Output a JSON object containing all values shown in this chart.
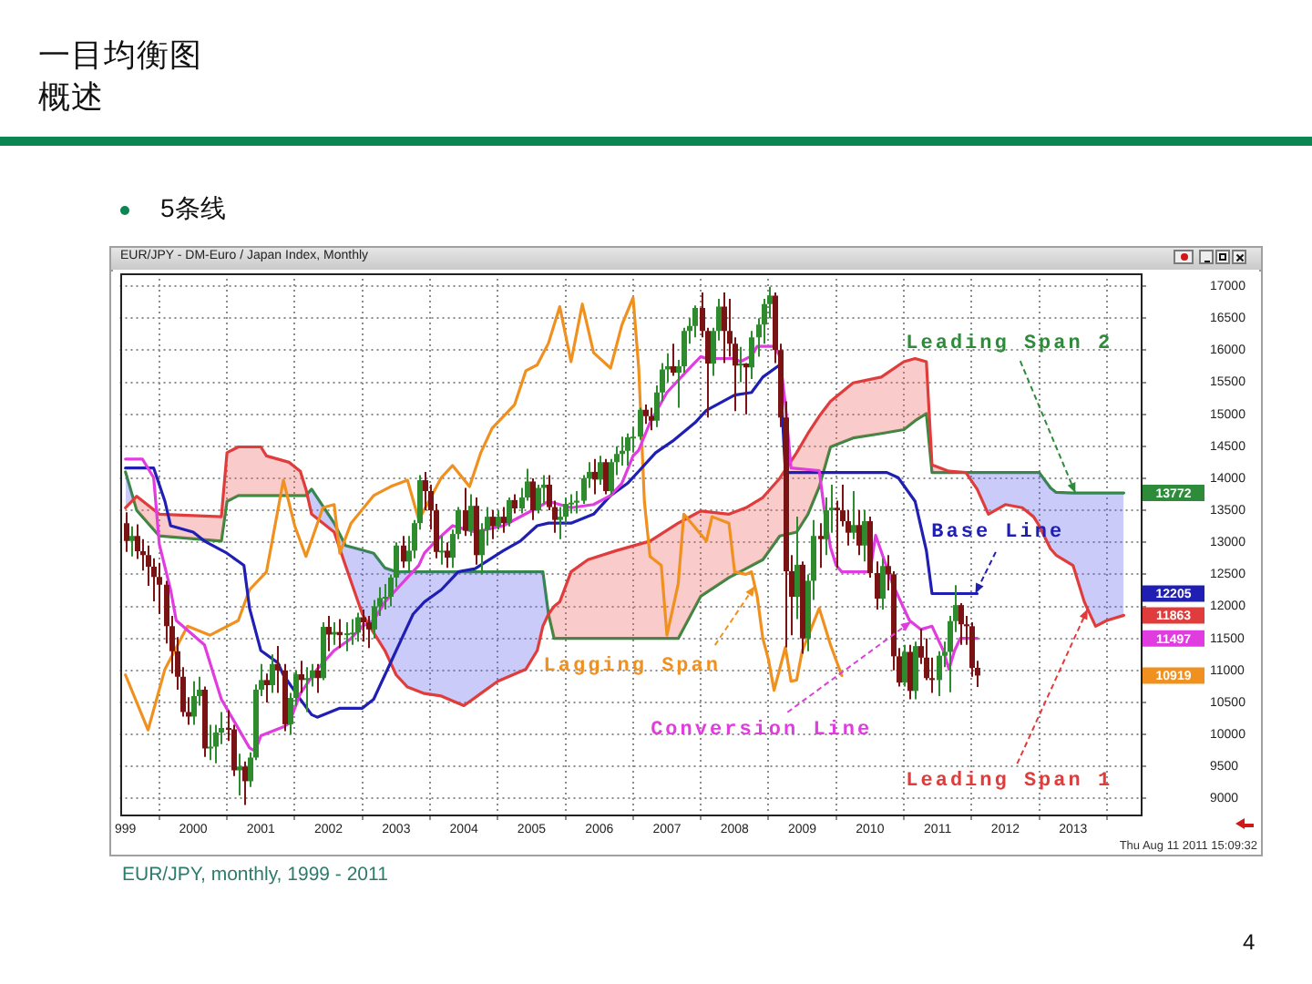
{
  "chart_data": {
    "type": "candlestick",
    "title": "一目均衡图",
    "subtitle": "概述",
    "annotations": [
      "5条线",
      "EUR/JPY - DM-Euro / Japan Index, Monthly",
      "Thu Aug 11 2011 15:09:32",
      "EUR/JPY, monthly, 1999 - 2011",
      "4",
      "13772",
      "12205",
      "11863",
      "11497",
      "10919"
    ],
    "xlim": [
      "1998-12",
      "2014-01"
    ],
    "xticks": [
      {
        "value": "1999",
        "label": "999"
      },
      "2000",
      "2001",
      "2002",
      "2003",
      "2004",
      "2005",
      "2006",
      "2007",
      "2008",
      "2009",
      "2010",
      "2011",
      "2012",
      "2013"
    ],
    "ylim": [
      8750,
      17200
    ],
    "yticks": [
      9000,
      9500,
      10000,
      10500,
      11000,
      11500,
      12000,
      12500,
      13000,
      13500,
      14000,
      14500,
      15000,
      15500,
      16000,
      16500,
      17000
    ],
    "grid": true,
    "x": [
      "1999-01",
      "1999-02",
      "1999-03",
      "1999-04",
      "1999-05",
      "1999-06",
      "1999-07",
      "1999-08",
      "1999-09",
      "1999-10",
      "1999-11",
      "1999-12",
      "2000-01",
      "2000-02",
      "2000-03",
      "2000-04",
      "2000-05",
      "2000-06",
      "2000-07",
      "2000-08",
      "2000-09",
      "2000-10",
      "2000-11",
      "2000-12",
      "2001-01",
      "2001-02",
      "2001-03",
      "2001-04",
      "2001-05",
      "2001-06",
      "2001-07",
      "2001-08",
      "2001-09",
      "2001-10",
      "2001-11",
      "2001-12",
      "2002-01",
      "2002-02",
      "2002-03",
      "2002-04",
      "2002-05",
      "2002-06",
      "2002-07",
      "2002-08",
      "2002-09",
      "2002-10",
      "2002-11",
      "2002-12",
      "2003-01",
      "2003-02",
      "2003-03",
      "2003-04",
      "2003-05",
      "2003-06",
      "2003-07",
      "2003-08",
      "2003-09",
      "2003-10",
      "2003-11",
      "2003-12",
      "2004-01",
      "2004-02",
      "2004-03",
      "2004-04",
      "2004-05",
      "2004-06",
      "2004-07",
      "2004-08",
      "2004-09",
      "2004-10",
      "2004-11",
      "2004-12",
      "2005-01",
      "2005-02",
      "2005-03",
      "2005-04",
      "2005-05",
      "2005-06",
      "2005-07",
      "2005-08",
      "2005-09",
      "2005-10",
      "2005-11",
      "2005-12",
      "2006-01",
      "2006-02",
      "2006-03",
      "2006-04",
      "2006-05",
      "2006-06",
      "2006-07",
      "2006-08",
      "2006-09",
      "2006-10",
      "2006-11",
      "2006-12",
      "2007-01",
      "2007-02",
      "2007-03",
      "2007-04",
      "2007-05",
      "2007-06",
      "2007-07",
      "2007-08",
      "2007-09",
      "2007-10",
      "2007-11",
      "2007-12",
      "2008-01",
      "2008-02",
      "2008-03",
      "2008-04",
      "2008-05",
      "2008-06",
      "2008-07",
      "2008-08",
      "2008-09",
      "2008-10",
      "2008-11",
      "2008-12",
      "2009-01",
      "2009-02",
      "2009-03",
      "2009-04",
      "2009-05",
      "2009-06",
      "2009-07",
      "2009-08",
      "2009-09",
      "2009-10",
      "2009-11",
      "2009-12",
      "2010-01",
      "2010-02",
      "2010-03",
      "2010-04",
      "2010-05",
      "2010-06",
      "2010-07",
      "2010-08",
      "2010-09",
      "2010-10",
      "2010-11",
      "2010-12",
      "2011-01",
      "2011-02",
      "2011-03",
      "2011-04",
      "2011-05",
      "2011-06",
      "2011-07",
      "2011-08"
    ],
    "ohlc": [
      [
        13300,
        13470,
        12850,
        13020
      ],
      [
        13020,
        13250,
        12780,
        13100
      ],
      [
        13100,
        13280,
        12740,
        12860
      ],
      [
        12860,
        13050,
        12560,
        12800
      ],
      [
        12800,
        12950,
        12320,
        12620
      ],
      [
        12620,
        12750,
        12080,
        12460
      ],
      [
        12460,
        12680,
        11880,
        12340
      ],
      [
        12340,
        12400,
        11420,
        11690
      ],
      [
        11690,
        11850,
        10950,
        11300
      ],
      [
        11300,
        11520,
        10700,
        10900
      ],
      [
        10900,
        11050,
        10280,
        10350
      ],
      [
        10350,
        10580,
        10150,
        10280
      ],
      [
        10280,
        10830,
        10150,
        10600
      ],
      [
        10600,
        10900,
        10450,
        10700
      ],
      [
        10700,
        10750,
        9650,
        9780
      ],
      [
        9780,
        10150,
        9600,
        9810
      ],
      [
        9810,
        10150,
        9550,
        10030
      ],
      [
        10030,
        10350,
        9850,
        10100
      ],
      [
        10100,
        10380,
        9900,
        10080
      ],
      [
        10080,
        10150,
        9350,
        9440
      ],
      [
        9440,
        9700,
        9050,
        9500
      ],
      [
        9500,
        9580,
        8900,
        9270
      ],
      [
        9270,
        9720,
        9180,
        9640
      ],
      [
        9640,
        10780,
        9600,
        10700
      ],
      [
        10700,
        11100,
        10600,
        10850
      ],
      [
        10850,
        10950,
        10500,
        10770
      ],
      [
        10770,
        11250,
        10650,
        11100
      ],
      [
        11100,
        11380,
        10650,
        11000
      ],
      [
        11000,
        11100,
        10050,
        10160
      ],
      [
        10160,
        10650,
        10000,
        10570
      ],
      [
        10570,
        11000,
        10450,
        10940
      ],
      [
        10940,
        11150,
        10650,
        10850
      ],
      [
        10850,
        11050,
        10350,
        10880
      ],
      [
        10880,
        11100,
        10750,
        11000
      ],
      [
        11000,
        11100,
        10650,
        10880
      ],
      [
        10880,
        11750,
        10850,
        11680
      ],
      [
        11680,
        11850,
        11300,
        11560
      ],
      [
        11560,
        11750,
        11400,
        11600
      ],
      [
        11600,
        11800,
        11350,
        11550
      ],
      [
        11550,
        11750,
        11300,
        11580
      ],
      [
        11580,
        11800,
        11400,
        11590
      ],
      [
        11590,
        11900,
        11450,
        11830
      ],
      [
        11830,
        11950,
        11450,
        11750
      ],
      [
        11750,
        11850,
        11350,
        11640
      ],
      [
        11640,
        12100,
        11500,
        12000
      ],
      [
        12000,
        12300,
        11850,
        12130
      ],
      [
        12130,
        12350,
        11950,
        12150
      ],
      [
        12150,
        12500,
        12000,
        12450
      ],
      [
        12450,
        13000,
        12300,
        12950
      ],
      [
        12950,
        13100,
        12600,
        12700
      ],
      [
        12700,
        13100,
        12550,
        12870
      ],
      [
        12870,
        13350,
        12750,
        13300
      ],
      [
        13300,
        14050,
        13200,
        13970
      ],
      [
        13970,
        14100,
        13500,
        13800
      ],
      [
        13800,
        13900,
        13200,
        13500
      ],
      [
        13500,
        13600,
        12750,
        12850
      ],
      [
        12850,
        13100,
        12650,
        12870
      ],
      [
        12870,
        13000,
        12600,
        12760
      ],
      [
        12760,
        13200,
        12600,
        13130
      ],
      [
        13130,
        13550,
        13050,
        13500
      ],
      [
        13500,
        13850,
        13100,
        13180
      ],
      [
        13180,
        13750,
        13100,
        13570
      ],
      [
        13570,
        13700,
        12650,
        12800
      ],
      [
        12800,
        13300,
        12500,
        13200
      ],
      [
        13200,
        13550,
        12950,
        13400
      ],
      [
        13400,
        13500,
        13050,
        13250
      ],
      [
        13250,
        13500,
        13200,
        13400
      ],
      [
        13400,
        13550,
        13150,
        13300
      ],
      [
        13300,
        13700,
        13250,
        13660
      ],
      [
        13660,
        13750,
        13450,
        13530
      ],
      [
        13530,
        13850,
        13450,
        13700
      ],
      [
        13700,
        14150,
        13650,
        13950
      ],
      [
        13950,
        14000,
        13350,
        13500
      ],
      [
        13500,
        13900,
        13450,
        13850
      ],
      [
        13850,
        14050,
        13600,
        13900
      ],
      [
        13900,
        14050,
        13500,
        13550
      ],
      [
        13550,
        13650,
        13150,
        13350
      ],
      [
        13350,
        13550,
        13050,
        13400
      ],
      [
        13400,
        13700,
        13300,
        13600
      ],
      [
        13600,
        13750,
        13450,
        13620
      ],
      [
        13620,
        13800,
        13450,
        13650
      ],
      [
        13650,
        14050,
        13600,
        14000
      ],
      [
        14000,
        14250,
        13850,
        14100
      ],
      [
        14100,
        14300,
        13750,
        13980
      ],
      [
        13980,
        14350,
        13900,
        14250
      ],
      [
        14250,
        14300,
        13750,
        13800
      ],
      [
        13800,
        14300,
        13750,
        14250
      ],
      [
        14250,
        14500,
        14050,
        14380
      ],
      [
        14380,
        14650,
        14200,
        14430
      ],
      [
        14430,
        14700,
        14200,
        14640
      ],
      [
        14640,
        14800,
        14400,
        14650
      ],
      [
        14650,
        15100,
        14600,
        15070
      ],
      [
        15070,
        15150,
        14850,
        14970
      ],
      [
        14970,
        15100,
        14750,
        14900
      ],
      [
        14900,
        15450,
        14800,
        15340
      ],
      [
        15340,
        15800,
        15200,
        15700
      ],
      [
        15700,
        15950,
        15500,
        15750
      ],
      [
        15750,
        16100,
        15600,
        15650
      ],
      [
        15650,
        15850,
        15100,
        15750
      ],
      [
        15750,
        16350,
        15650,
        16300
      ],
      [
        16300,
        16500,
        16100,
        16380
      ],
      [
        16380,
        16700,
        16200,
        16660
      ],
      [
        16660,
        16900,
        16200,
        16300
      ],
      [
        16300,
        16350,
        14950,
        15790
      ],
      [
        15790,
        16350,
        15600,
        16300
      ],
      [
        16300,
        16800,
        16150,
        16680
      ],
      [
        16680,
        16900,
        15800,
        16300
      ],
      [
        16300,
        16800,
        15900,
        16100
      ],
      [
        16100,
        16200,
        15050,
        15760
      ],
      [
        15760,
        16050,
        15500,
        15790
      ],
      [
        15790,
        15800,
        15000,
        15730
      ],
      [
        15730,
        16300,
        15550,
        16200
      ],
      [
        16200,
        16500,
        15900,
        16400
      ],
      [
        16400,
        16800,
        16100,
        16720
      ],
      [
        16720,
        16990,
        16500,
        16850
      ],
      [
        16850,
        16900,
        15800,
        16000
      ],
      [
        16000,
        16100,
        14800,
        14950
      ],
      [
        14950,
        15200,
        11360,
        12550
      ],
      [
        12550,
        12800,
        11550,
        12150
      ],
      [
        12150,
        13400,
        11800,
        12650
      ],
      [
        12650,
        12700,
        11260,
        11500
      ],
      [
        11500,
        12500,
        11300,
        12400
      ],
      [
        12400,
        13350,
        12100,
        13100
      ],
      [
        13100,
        13300,
        12600,
        13050
      ],
      [
        13050,
        13700,
        12800,
        13500
      ],
      [
        13500,
        13900,
        13150,
        13540
      ],
      [
        13540,
        13650,
        12600,
        13500
      ],
      [
        13500,
        13900,
        13250,
        13330
      ],
      [
        13330,
        13500,
        12950,
        13150
      ],
      [
        13150,
        13800,
        13050,
        13270
      ],
      [
        13270,
        13500,
        12800,
        12950
      ],
      [
        12950,
        13500,
        12700,
        13330
      ],
      [
        13330,
        13400,
        12450,
        12520
      ],
      [
        12520,
        12700,
        11950,
        12120
      ],
      [
        12120,
        12750,
        11950,
        12630
      ],
      [
        12630,
        12800,
        12250,
        12500
      ],
      [
        12500,
        12550,
        11000,
        11220
      ],
      [
        11220,
        11350,
        10750,
        10810
      ],
      [
        10810,
        11400,
        10750,
        11290
      ],
      [
        11290,
        11400,
        10550,
        10680
      ],
      [
        10680,
        11450,
        10550,
        11380
      ],
      [
        11380,
        11650,
        11100,
        11200
      ],
      [
        11200,
        11500,
        10850,
        10880
      ],
      [
        10880,
        11200,
        10650,
        10850
      ],
      [
        10850,
        11300,
        10600,
        11230
      ],
      [
        11230,
        11450,
        11050,
        11290
      ],
      [
        11290,
        11850,
        10660,
        11770
      ],
      [
        11770,
        12330,
        11600,
        12020
      ],
      [
        12020,
        12050,
        11400,
        11720
      ],
      [
        11720,
        11850,
        11400,
        11690
      ],
      [
        11690,
        11750,
        10900,
        11040
      ],
      [
        11040,
        11150,
        10740,
        10920
      ]
    ],
    "colors": [
      "#7a1414",
      "#2e8b2e",
      "#7a1414",
      "#7a1414",
      "#7a1414",
      "#7a1414",
      "#7a1414",
      "#7a1414",
      "#7a1414",
      "#7a1414",
      "#7a1414",
      "#7a1414",
      "#2e8b2e",
      "#2e8b2e",
      "#7a1414",
      "#2e8b2e",
      "#2e8b2e",
      "#2e8b2e",
      "#7a1414",
      "#7a1414",
      "#2e8b2e",
      "#7a1414",
      "#2e8b2e",
      "#2e8b2e",
      "#2e8b2e",
      "#7a1414",
      "#2e8b2e",
      "#7a1414",
      "#7a1414",
      "#2e8b2e",
      "#2e8b2e",
      "#7a1414",
      "#2e8b2e",
      "#2e8b2e",
      "#7a1414",
      "#2e8b2e",
      "#7a1414",
      "#2e8b2e",
      "#7a1414",
      "#2e8b2e",
      "#2e8b2e",
      "#2e8b2e",
      "#7a1414",
      "#7a1414",
      "#2e8b2e",
      "#2e8b2e",
      "#2e8b2e",
      "#2e8b2e",
      "#2e8b2e",
      "#7a1414",
      "#2e8b2e",
      "#2e8b2e",
      "#2e8b2e",
      "#7a1414",
      "#7a1414",
      "#7a1414",
      "#2e8b2e",
      "#7a1414",
      "#2e8b2e",
      "#2e8b2e",
      "#7a1414",
      "#2e8b2e",
      "#7a1414",
      "#2e8b2e",
      "#2e8b2e",
      "#7a1414",
      "#2e8b2e",
      "#7a1414",
      "#2e8b2e",
      "#7a1414",
      "#2e8b2e",
      "#2e8b2e",
      "#7a1414",
      "#2e8b2e",
      "#2e8b2e",
      "#7a1414",
      "#7a1414",
      "#2e8b2e",
      "#2e8b2e",
      "#2e8b2e",
      "#2e8b2e",
      "#2e8b2e",
      "#2e8b2e",
      "#7a1414",
      "#2e8b2e",
      "#7a1414",
      "#2e8b2e",
      "#2e8b2e",
      "#2e8b2e",
      "#2e8b2e",
      "#2e8b2e",
      "#2e8b2e",
      "#7a1414",
      "#7a1414",
      "#2e8b2e",
      "#2e8b2e",
      "#2e8b2e",
      "#7a1414",
      "#2e8b2e",
      "#2e8b2e",
      "#2e8b2e",
      "#2e8b2e",
      "#7a1414",
      "#7a1414",
      "#2e8b2e",
      "#2e8b2e",
      "#7a1414",
      "#7a1414",
      "#7a1414",
      "#2e8b2e",
      "#7a1414",
      "#2e8b2e",
      "#2e8b2e",
      "#2e8b2e",
      "#2e8b2e",
      "#7a1414",
      "#7a1414",
      "#7a1414",
      "#7a1414",
      "#2e8b2e",
      "#7a1414",
      "#2e8b2e",
      "#2e8b2e",
      "#7a1414",
      "#2e8b2e",
      "#2e8b2e",
      "#7a1414",
      "#7a1414",
      "#7a1414",
      "#2e8b2e",
      "#7a1414",
      "#2e8b2e",
      "#7a1414",
      "#7a1414",
      "#2e8b2e",
      "#7a1414",
      "#7a1414",
      "#7a1414",
      "#2e8b2e",
      "#7a1414",
      "#2e8b2e",
      "#7a1414",
      "#7a1414",
      "#7a1414",
      "#2e8b2e",
      "#2e8b2e",
      "#2e8b2e",
      "#2e8b2e",
      "#7a1414",
      "#7a1414",
      "#7a1414",
      "#7a1414"
    ],
    "series": [
      {
        "name": "Conversion Line",
        "type": "line",
        "color": "#e03ce0",
        "x": [
          "1999-01",
          "1999-04",
          "1999-06",
          "1999-07",
          "1999-09",
          "1999-10",
          "2000-03",
          "2000-06",
          "2000-11",
          "2000-12",
          "2001-01",
          "2001-05",
          "2001-06",
          "2001-08",
          "2001-11",
          "2002-02",
          "2002-05",
          "2002-07",
          "2002-09",
          "2002-11",
          "2003-01",
          "2003-03",
          "2003-05",
          "2003-06",
          "2003-08",
          "2003-11",
          "2004-03",
          "2004-08",
          "2005-02",
          "2005-04",
          "2005-06",
          "2005-08",
          "2005-12",
          "2006-03",
          "2006-05",
          "2006-07",
          "2006-08",
          "2006-10",
          "2007-01",
          "2007-05",
          "2007-07",
          "2007-08",
          "2008-01",
          "2008-02",
          "2008-04",
          "2008-05",
          "2008-08",
          "2008-09",
          "2008-10",
          "2008-11",
          "2009-04",
          "2009-05",
          "2009-06",
          "2009-07",
          "2009-08",
          "2010-01",
          "2010-02",
          "2010-05",
          "2010-08",
          "2010-10",
          "2010-12",
          "2011-02",
          "2011-03",
          "2011-04",
          "2011-05",
          "2011-08"
        ],
        "values": [
          14300,
          14300,
          14010,
          12970,
          12260,
          11780,
          11400,
          10550,
          9790,
          9740,
          9980,
          10120,
          10170,
          10640,
          11020,
          11310,
          11500,
          11690,
          11780,
          12070,
          12260,
          12450,
          12640,
          12830,
          13020,
          13260,
          13160,
          13260,
          13540,
          13640,
          13590,
          13540,
          13590,
          13730,
          13920,
          14350,
          14440,
          14870,
          15340,
          15720,
          15900,
          15870,
          15870,
          15820,
          15910,
          16060,
          16060,
          15910,
          15150,
          14160,
          14120,
          13440,
          12920,
          12640,
          12540,
          12540,
          13110,
          12350,
          11780,
          11640,
          11690,
          11310,
          11020,
          11310,
          11500,
          11500
        ]
      },
      {
        "name": "Base Line",
        "type": "line",
        "color": "#1f1fb4",
        "x": [
          "1999-01",
          "1999-06",
          "1999-08",
          "1999-09",
          "2000-01",
          "2000-03",
          "2000-07",
          "2000-10",
          "2000-11",
          "2001-01",
          "2001-04",
          "2001-05",
          "2001-08",
          "2001-10",
          "2001-11",
          "2002-03",
          "2002-07",
          "2002-09",
          "2002-11",
          "2003-01",
          "2003-02",
          "2003-04",
          "2003-06",
          "2003-09",
          "2003-12",
          "2004-03",
          "2004-08",
          "2004-11",
          "2005-02",
          "2005-04",
          "2005-08",
          "2005-12",
          "2006-03",
          "2006-06",
          "2006-08",
          "2006-11",
          "2007-02",
          "2007-06",
          "2007-08",
          "2008-01",
          "2008-04",
          "2008-06",
          "2008-09",
          "2008-10",
          "2010-04",
          "2010-06",
          "2010-09",
          "2010-11",
          "2010-12",
          "2011-08"
        ],
        "values": [
          14160,
          14160,
          13640,
          13260,
          13160,
          13020,
          12830,
          12640,
          11970,
          11310,
          11120,
          10930,
          10550,
          10310,
          10270,
          10410,
          10410,
          10550,
          10930,
          11310,
          11500,
          11880,
          12070,
          12260,
          12540,
          12590,
          12870,
          13020,
          13260,
          13300,
          13300,
          13440,
          13730,
          13920,
          14110,
          14400,
          14580,
          14870,
          15060,
          15300,
          15340,
          15580,
          15770,
          14090,
          14090,
          14010,
          13640,
          12870,
          12200,
          12200
        ]
      },
      {
        "name": "Lagging Span",
        "type": "line",
        "color": "#f0901e",
        "x": [
          "1999-01",
          "1999-05",
          "1999-08",
          "1999-12",
          "2000-04",
          "2000-09",
          "2000-11",
          "2001-02",
          "2001-05",
          "2001-07",
          "2001-09",
          "2001-12",
          "2002-02",
          "2002-03",
          "2002-05",
          "2002-09",
          "2002-12",
          "2003-03",
          "2003-05",
          "2003-09",
          "2003-11",
          "2004-02",
          "2004-04",
          "2004-06",
          "2004-10",
          "2004-12",
          "2005-02",
          "2005-04",
          "2005-06",
          "2005-08",
          "2005-10",
          "2005-12",
          "2006-03",
          "2006-05",
          "2006-07",
          "2006-08",
          "2006-09",
          "2006-10",
          "2006-12",
          "2007-01",
          "2007-03",
          "2007-04",
          "2007-08",
          "2007-09",
          "2007-12",
          "2008-01",
          "2008-03",
          "2008-04",
          "2008-05",
          "2008-06",
          "2008-07",
          "2008-08",
          "2008-10",
          "2008-11",
          "2008-12",
          "2009-01",
          "2009-04",
          "2009-06",
          "2009-08"
        ],
        "values": [
          10930,
          10070,
          11020,
          11690,
          11550,
          11780,
          12260,
          12540,
          13970,
          13260,
          12780,
          13540,
          13590,
          12830,
          13300,
          13730,
          13870,
          13970,
          13350,
          14010,
          14200,
          13870,
          14400,
          14780,
          15150,
          15680,
          15770,
          16110,
          16680,
          15820,
          16720,
          15960,
          15720,
          16390,
          16820,
          15720,
          13640,
          12780,
          12640,
          11550,
          12350,
          13440,
          13020,
          13400,
          13300,
          12540,
          12500,
          12540,
          12160,
          11500,
          11170,
          10690,
          11360,
          10830,
          10850,
          11310,
          11970,
          11400,
          10920
        ]
      },
      {
        "name": "Leading Span 1",
        "type": "line",
        "color": "#e03c3c",
        "x": [
          "1999-01",
          "1999-03",
          "1999-07",
          "2000-06",
          "2000-07",
          "2000-09",
          "2001-01",
          "2001-02",
          "2001-06",
          "2001-08",
          "2001-09",
          "2001-10",
          "2002-02",
          "2002-04",
          "2002-07",
          "2002-09",
          "2002-11",
          "2003-01",
          "2003-03",
          "2003-06",
          "2003-09",
          "2004-01",
          "2004-04",
          "2004-07",
          "2004-12",
          "2005-02",
          "2005-03",
          "2005-04",
          "2005-05",
          "2005-06",
          "2005-08",
          "2005-11",
          "2006-04",
          "2006-10",
          "2007-03",
          "2007-07",
          "2007-12",
          "2008-03",
          "2008-06",
          "2008-09",
          "2008-12",
          "2009-02",
          "2009-04",
          "2009-06",
          "2009-10",
          "2010-03",
          "2010-07",
          "2010-09",
          "2010-11",
          "2010-12",
          "2011-03",
          "2011-06",
          "2011-08",
          "2011-10",
          "2012-01",
          "2012-04",
          "2012-06",
          "2012-07",
          "2012-09",
          "2012-10",
          "2013-01",
          "2013-03",
          "2013-05",
          "2013-07",
          "2013-10"
        ],
        "values": [
          13540,
          13720,
          13440,
          13400,
          14400,
          14490,
          14490,
          14350,
          14250,
          14110,
          13830,
          13440,
          13160,
          12640,
          11880,
          11590,
          11310,
          10930,
          10740,
          10640,
          10600,
          10450,
          10640,
          10830,
          11020,
          11310,
          11690,
          11880,
          12000,
          12070,
          12540,
          12730,
          12870,
          13020,
          13300,
          13490,
          13440,
          13540,
          13700,
          14000,
          14400,
          14700,
          14970,
          15200,
          15490,
          15580,
          15820,
          15870,
          15820,
          14210,
          14110,
          14090,
          13830,
          13440,
          13590,
          13540,
          13400,
          13260,
          12900,
          12800,
          12640,
          12070,
          11690,
          11780,
          11860
        ]
      },
      {
        "name": "Leading Span 2",
        "type": "line",
        "color": "#2e8b3a",
        "x": [
          "1999-01",
          "1999-03",
          "1999-07",
          "2000-06",
          "2000-07",
          "2000-09",
          "2001-01",
          "2001-02",
          "2001-06",
          "2001-08",
          "2001-09",
          "2001-10",
          "2002-02",
          "2002-04",
          "2002-07",
          "2002-09",
          "2002-11",
          "2003-01",
          "2003-03",
          "2003-06",
          "2003-09",
          "2004-01",
          "2004-04",
          "2004-07",
          "2004-12",
          "2005-02",
          "2005-03",
          "2005-04",
          "2005-05",
          "2005-06",
          "2005-08",
          "2005-11",
          "2006-04",
          "2006-10",
          "2007-03",
          "2007-07",
          "2007-12",
          "2008-03",
          "2008-06",
          "2008-09",
          "2008-12",
          "2009-02",
          "2009-04",
          "2009-06",
          "2009-10",
          "2010-03",
          "2010-07",
          "2010-09",
          "2010-11",
          "2010-12",
          "2011-03",
          "2011-06",
          "2011-08",
          "2011-10",
          "2012-01",
          "2012-04",
          "2012-06",
          "2012-07",
          "2012-09",
          "2012-10",
          "2013-01",
          "2013-03",
          "2013-05",
          "2013-07",
          "2013-10"
        ],
        "values": [
          14100,
          13500,
          13100,
          13020,
          13640,
          13730,
          13730,
          13730,
          13730,
          13730,
          13730,
          13830,
          13300,
          12950,
          12880,
          12830,
          12600,
          12540,
          12540,
          12540,
          12540,
          12540,
          12540,
          12540,
          12540,
          12540,
          12540,
          11880,
          11500,
          11500,
          11500,
          11500,
          11500,
          11500,
          11500,
          12160,
          12450,
          12590,
          12730,
          13100,
          13160,
          13440,
          13870,
          14490,
          14630,
          14700,
          14760,
          14900,
          15010,
          14090,
          14090,
          14090,
          14090,
          14090,
          14090,
          14090,
          14090,
          14090,
          13850,
          13780,
          13770,
          13770,
          13770,
          13770,
          13770
        ]
      }
    ]
  }
}
